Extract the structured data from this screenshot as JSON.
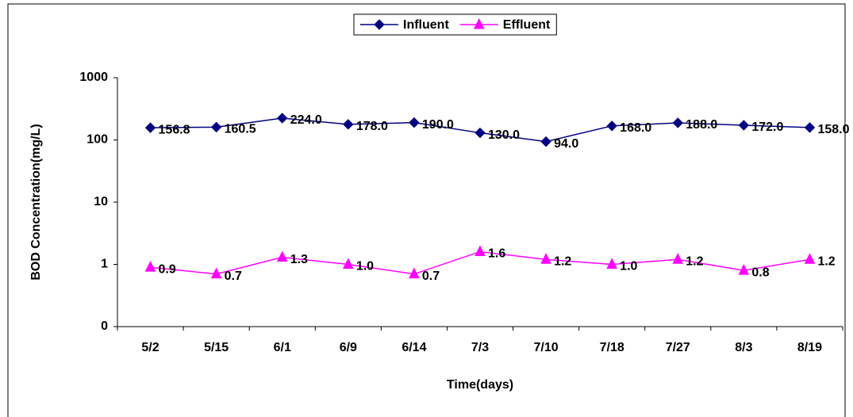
{
  "chart_data": {
    "type": "line",
    "x_label": "Time(days)",
    "y_label": "BOD Concentration(mg/L)",
    "categories": [
      "5/2",
      "5/15",
      "6/1",
      "6/9",
      "6/14",
      "7/3",
      "7/10",
      "7/18",
      "7/27",
      "8/3",
      "8/19"
    ],
    "series": [
      {
        "name": "Influent",
        "color": "#000080",
        "marker": "diamond",
        "values": [
          156.8,
          160.5,
          224.0,
          178.0,
          190.0,
          130.0,
          94.0,
          168.0,
          188.0,
          172.0,
          158.0
        ],
        "value_labels": [
          "156.8",
          "160.5",
          "224.0",
          "178.0",
          "190.0",
          "130.0",
          "94.0",
          "168.0",
          "188.0",
          "172.0",
          "158.0"
        ]
      },
      {
        "name": "Effluent",
        "color": "#ff00ff",
        "marker": "triangle",
        "values": [
          0.9,
          0.7,
          1.3,
          1.0,
          0.7,
          1.6,
          1.2,
          1.0,
          1.2,
          0.8,
          1.2
        ],
        "value_labels": [
          "0.9",
          "0.7",
          "1.3",
          "1.0",
          "0.7",
          "1.6",
          "1.2",
          "1.0",
          "1.2",
          "0.8",
          "1.2"
        ]
      }
    ],
    "log_y": true,
    "ylim": [
      0.1,
      1000
    ],
    "yticks": [
      {
        "value": 0.1,
        "label": "0"
      },
      1,
      10,
      100,
      1000
    ],
    "legend": "top"
  }
}
